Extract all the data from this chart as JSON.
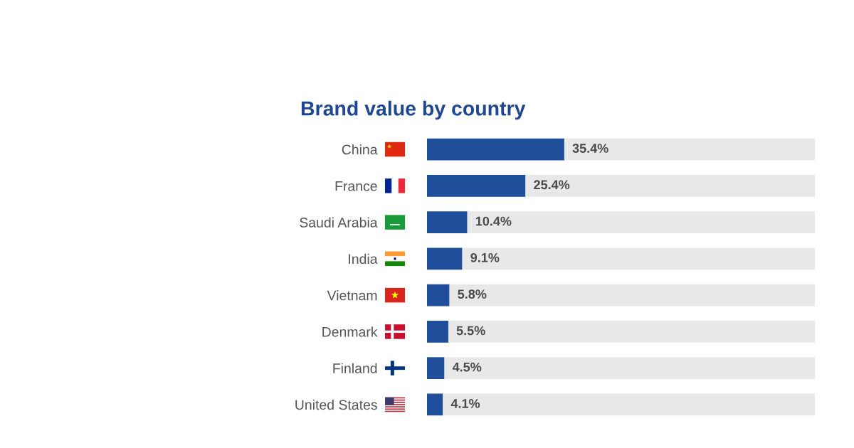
{
  "chart_data": {
    "type": "bar",
    "orientation": "horizontal",
    "stacked": true,
    "title": "Brand value by country",
    "categories": [
      "China",
      "France",
      "Saudi Arabia",
      "India",
      "Vietnam",
      "Denmark",
      "Finland",
      "United States"
    ],
    "series": [
      {
        "color": "#1f4f9b",
        "values": [
          35.4,
          25.4,
          10.4,
          9.1,
          5.8,
          5.5,
          4.5,
          4.1
        ],
        "value_labels": [
          "35.4%",
          "25.4%",
          "10.4%",
          "9.1%",
          "5.8%",
          "5.5%",
          "4.5%",
          "4.1%"
        ]
      },
      {
        "color": "#e8e8e8",
        "values": [
          64.6,
          74.6,
          89.6,
          90.9,
          94.2,
          94.5,
          95.5,
          95.9
        ]
      }
    ],
    "xlim": [
      0,
      100
    ],
    "tick_labels": "y"
  }
}
